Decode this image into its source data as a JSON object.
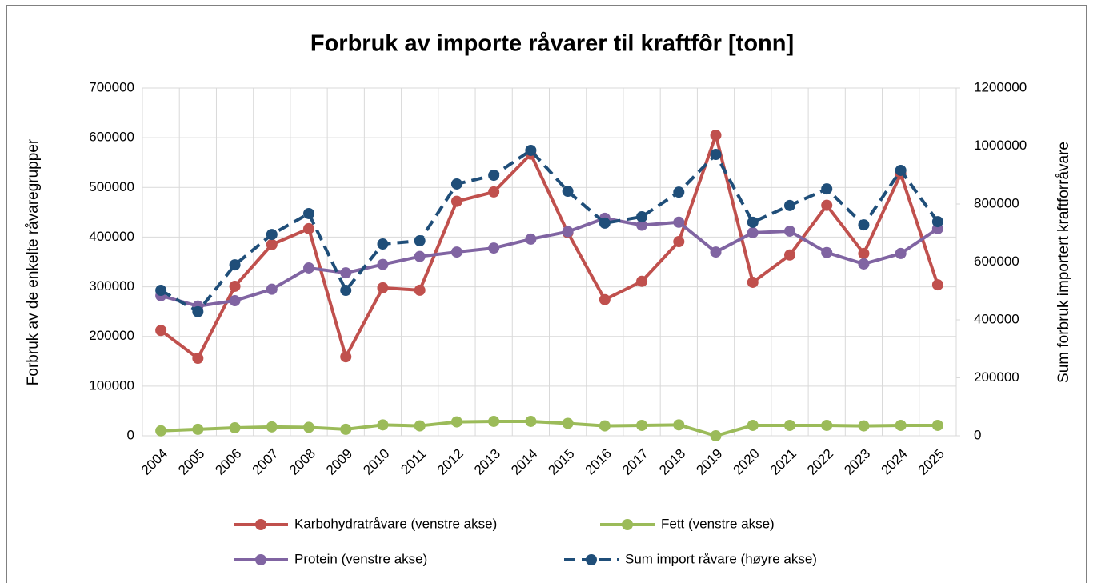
{
  "chart_data": {
    "type": "line",
    "title": "Forbruk av importe råvarer til kraftfôr [tonn]",
    "y_label": "Forbruk av de enkelte råvaregrupper",
    "y2_label": "Sum forbruk importert kraftforråvare",
    "categories": [
      "2004",
      "2005",
      "2006",
      "2007",
      "2008",
      "2009",
      "2010",
      "2011",
      "2012",
      "2013",
      "2014",
      "2015",
      "2016",
      "2017",
      "2018",
      "2019",
      "2020",
      "2021",
      "2022",
      "2023",
      "2024",
      "2025"
    ],
    "ylim": [
      0,
      700000
    ],
    "yticks": [
      0,
      100000,
      200000,
      300000,
      400000,
      500000,
      600000,
      700000
    ],
    "y2lim": [
      0,
      1200000
    ],
    "y2ticks": [
      0,
      200000,
      400000,
      600000,
      800000,
      1000000,
      1200000
    ],
    "grid": true,
    "series": [
      {
        "name": "Karbohydratråvare (venstre akse)",
        "color": "#c0504d",
        "dashed": false,
        "values": [
          212000,
          156000,
          301000,
          385000,
          417000,
          159000,
          298000,
          293000,
          472000,
          491000,
          567000,
          409000,
          274000,
          311000,
          391000,
          605000,
          309000,
          364000,
          464000,
          367000,
          527000,
          304000
        ]
      },
      {
        "name": "Fett (venstre akse)",
        "color": "#9bbb59",
        "dashed": false,
        "values": [
          10000,
          13000,
          16000,
          18000,
          17000,
          13000,
          22000,
          20000,
          28000,
          29000,
          29000,
          25000,
          20000,
          21000,
          22000,
          0,
          21000,
          21000,
          21000,
          20000,
          21000,
          21000
        ]
      },
      {
        "name": "Protein (venstre akse)",
        "color": "#8064a2",
        "dashed": false,
        "values": [
          282000,
          261000,
          272000,
          295000,
          338000,
          328000,
          345000,
          361000,
          370000,
          378000,
          396000,
          411000,
          438000,
          424000,
          430000,
          370000,
          409000,
          412000,
          369000,
          346000,
          367000,
          417000
        ]
      },
      {
        "name": "Sum import råvare (høyre akse)",
        "color": "#1f4e79",
        "dashed": true,
        "axis": "y2",
        "values": [
          502000,
          428000,
          590000,
          695000,
          767000,
          502000,
          662000,
          673000,
          869000,
          899000,
          985000,
          844000,
          734000,
          756000,
          841000,
          971000,
          737000,
          795000,
          852000,
          728000,
          916000,
          739000
        ]
      }
    ]
  }
}
